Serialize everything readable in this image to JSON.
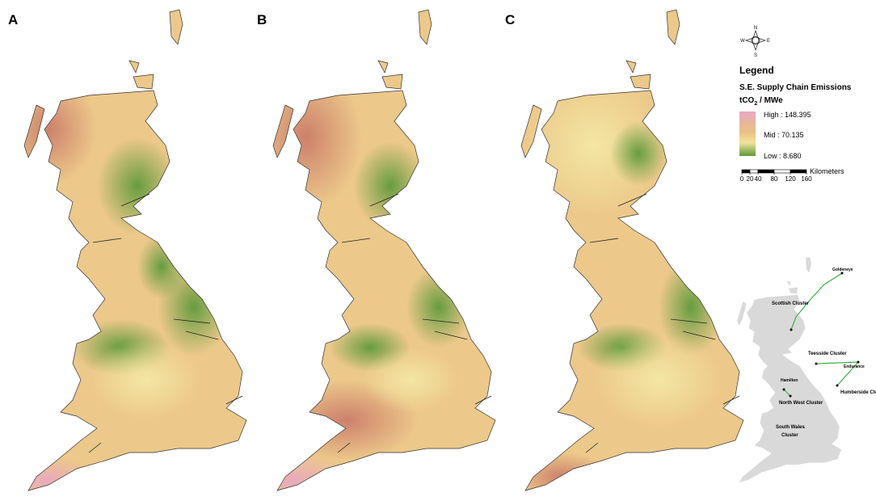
{
  "panels": [
    "A",
    "B",
    "C"
  ],
  "compass": {
    "n": "N",
    "e": "E",
    "s": "S",
    "w": "W"
  },
  "legend": {
    "heading": "Legend",
    "title": "S.E. Supply Chain Emissions",
    "unit": {
      "main": "tCO",
      "sub": "2",
      "rest": " / MWe"
    },
    "high": "High : 148.395",
    "mid": "Mid : 70.135",
    "low": "Low : 8.680"
  },
  "scale": {
    "ticks": [
      0,
      20,
      40,
      80,
      120,
      160
    ],
    "unit": "Kilometers"
  },
  "inset": {
    "labels": [
      "Goldeneye",
      "Scottish Cluster",
      "Teesside Cluster",
      "Endurance",
      "Hamilton",
      "Humberside Cluster",
      "North West Cluster",
      "South Wales",
      "Cluster"
    ]
  }
}
